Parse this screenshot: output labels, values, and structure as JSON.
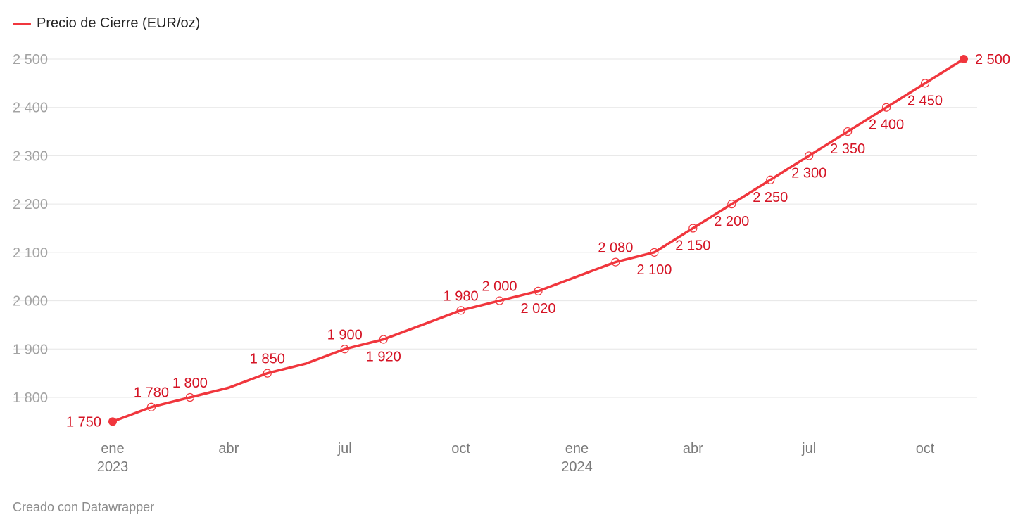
{
  "legend": {
    "label": "Precio de Cierre (EUR/oz)",
    "color": "#f0363d"
  },
  "footer": {
    "credit": "Creado con Datawrapper"
  },
  "chart_data": {
    "type": "line",
    "title": "",
    "xlabel": "",
    "ylabel": "",
    "ylim": [
      1740,
      2510
    ],
    "grid": true,
    "legend_position": "top-left",
    "y_ticks": [
      {
        "value": 1800,
        "label": "1 800"
      },
      {
        "value": 1900,
        "label": "1 900"
      },
      {
        "value": 2000,
        "label": "2 000"
      },
      {
        "value": 2100,
        "label": "2 100"
      },
      {
        "value": 2200,
        "label": "2 200"
      },
      {
        "value": 2300,
        "label": "2 300"
      },
      {
        "value": 2400,
        "label": "2 400"
      },
      {
        "value": 2500,
        "label": "2 500"
      }
    ],
    "x_ticks": [
      {
        "date": "2023-01",
        "label": "ene",
        "year": "2023"
      },
      {
        "date": "2023-04",
        "label": "abr",
        "year": ""
      },
      {
        "date": "2023-07",
        "label": "jul",
        "year": ""
      },
      {
        "date": "2023-10",
        "label": "oct",
        "year": ""
      },
      {
        "date": "2024-01",
        "label": "ene",
        "year": "2024"
      },
      {
        "date": "2024-04",
        "label": "abr",
        "year": ""
      },
      {
        "date": "2024-07",
        "label": "jul",
        "year": ""
      },
      {
        "date": "2024-10",
        "label": "oct",
        "year": ""
      }
    ],
    "series": [
      {
        "name": "Precio de Cierre (EUR/oz)",
        "color": "#f0363d",
        "points": [
          {
            "x": "2023-01",
            "y": 1750,
            "label": "1 750",
            "pos": "left"
          },
          {
            "x": "2023-02",
            "y": 1780,
            "label": "1 780",
            "pos": "above"
          },
          {
            "x": "2023-03",
            "y": 1800,
            "label": "1 800",
            "pos": "above"
          },
          {
            "x": "2023-04",
            "y": 1820
          },
          {
            "x": "2023-05",
            "y": 1850,
            "label": "1 850",
            "pos": "above"
          },
          {
            "x": "2023-06",
            "y": 1870
          },
          {
            "x": "2023-07",
            "y": 1900,
            "label": "1 900",
            "pos": "above"
          },
          {
            "x": "2023-08",
            "y": 1920,
            "label": "1 920",
            "pos": "below"
          },
          {
            "x": "2023-09",
            "y": 1950
          },
          {
            "x": "2023-10",
            "y": 1980,
            "label": "1 980",
            "pos": "above"
          },
          {
            "x": "2023-11",
            "y": 2000,
            "label": "2 000",
            "pos": "above"
          },
          {
            "x": "2023-12",
            "y": 2020,
            "label": "2 020",
            "pos": "below"
          },
          {
            "x": "2024-01",
            "y": 2050
          },
          {
            "x": "2024-02",
            "y": 2080,
            "label": "2 080",
            "pos": "above"
          },
          {
            "x": "2024-03",
            "y": 2100,
            "label": "2 100",
            "pos": "below"
          },
          {
            "x": "2024-04",
            "y": 2150,
            "label": "2 150",
            "pos": "below"
          },
          {
            "x": "2024-05",
            "y": 2200,
            "label": "2 200",
            "pos": "below"
          },
          {
            "x": "2024-06",
            "y": 2250,
            "label": "2 250",
            "pos": "below"
          },
          {
            "x": "2024-07",
            "y": 2300,
            "label": "2 300",
            "pos": "below"
          },
          {
            "x": "2024-08",
            "y": 2350,
            "label": "2 350",
            "pos": "below"
          },
          {
            "x": "2024-09",
            "y": 2400,
            "label": "2 400",
            "pos": "below"
          },
          {
            "x": "2024-10",
            "y": 2450,
            "label": "2 450",
            "pos": "below"
          },
          {
            "x": "2024-11",
            "y": 2500,
            "label": "2 500",
            "pos": "right"
          }
        ]
      }
    ]
  }
}
